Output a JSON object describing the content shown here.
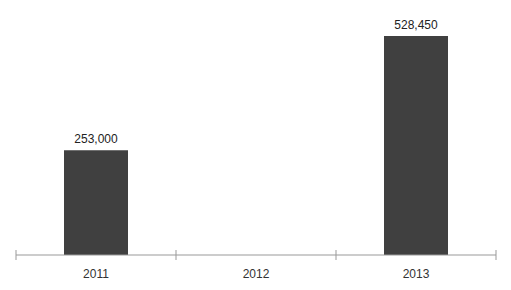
{
  "chart_data": {
    "type": "bar",
    "categories": [
      "2011",
      "2012",
      "2013"
    ],
    "values": [
      253000,
      null,
      528450
    ],
    "value_labels": [
      "253,000",
      null,
      "528,450"
    ],
    "color": "#404040",
    "ylim": [
      0,
      528450
    ],
    "grid": false,
    "data_labels": true,
    "tick_labels": "x"
  }
}
